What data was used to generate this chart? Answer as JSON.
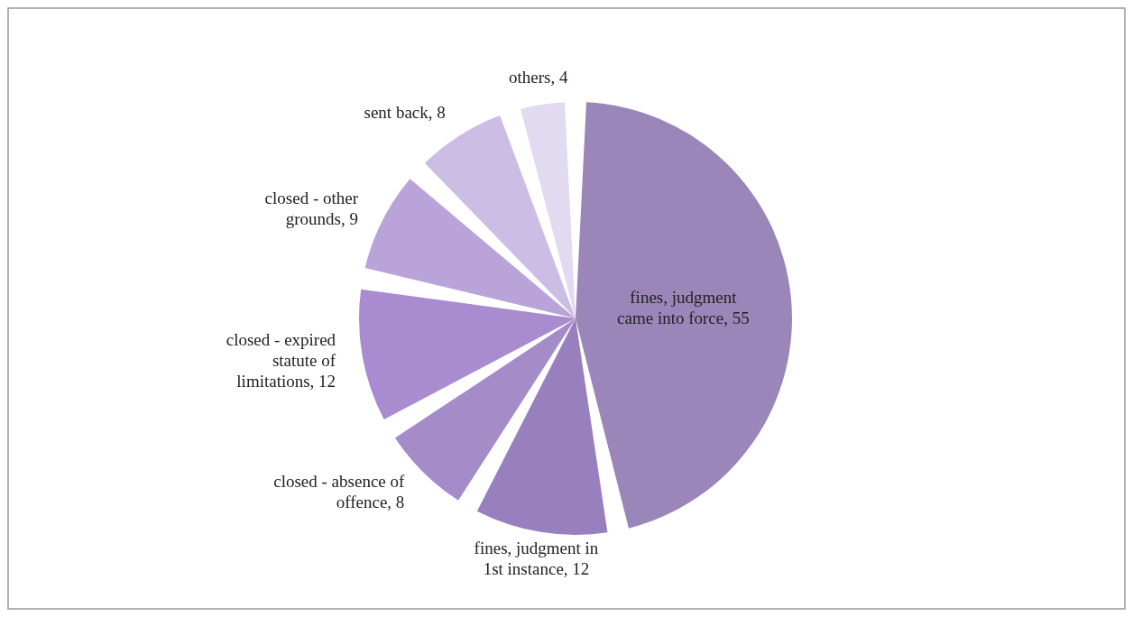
{
  "chart_data": {
    "type": "pie",
    "categories": [
      "fines, judgment came into force",
      "fines, judgment in 1st instance",
      "closed - absence of offence",
      "closed - expired statute of limitations",
      "closed - other grounds",
      "sent back",
      "others"
    ],
    "values": [
      55,
      12,
      8,
      12,
      9,
      8,
      4
    ],
    "value_labels": [
      ", 55",
      ", 12",
      ", 8",
      ", 12",
      ", 9",
      ", 8",
      ", 4"
    ],
    "colors": [
      "#9a86b8",
      "#9880bf",
      "#a48cc8",
      "#a98bd0",
      "#b9a3d8",
      "#cbbde3",
      "#e2daf0"
    ]
  }
}
